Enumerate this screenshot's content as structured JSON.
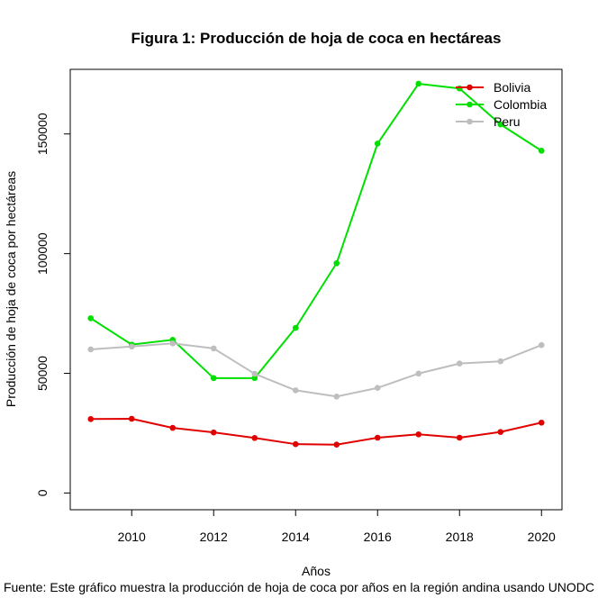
{
  "chart_data": {
    "type": "line",
    "title": "Figura 1: Producción de hoja de coca en hectáreas",
    "xlabel": "Años",
    "ylabel": "Producción de hoja de coca por hectáreas",
    "caption": "Fuente: Este gráfico muestra la producción de hoja de coca por años en la región andina usando UNODC",
    "x": [
      2009,
      2010,
      2011,
      2012,
      2013,
      2014,
      2015,
      2016,
      2017,
      2018,
      2019,
      2020
    ],
    "xlim": [
      2008.5,
      2020.5
    ],
    "ylim": [
      -7000,
      177000
    ],
    "x_ticks": [
      2010,
      2012,
      2014,
      2016,
      2018,
      2020
    ],
    "x_tick_labels": [
      "2010",
      "2012",
      "2014",
      "2016",
      "2018",
      "2020"
    ],
    "y_ticks": [
      0,
      50000,
      100000,
      150000
    ],
    "y_tick_labels": [
      "0",
      "50000",
      "100000",
      "150000"
    ],
    "legend_position": "top-right",
    "series": [
      {
        "name": "Bolivia",
        "color": "#e00000",
        "values": [
          30900,
          31000,
          27200,
          25300,
          23000,
          20400,
          20200,
          23100,
          24500,
          23100,
          25500,
          29400
        ]
      },
      {
        "name": "Colombia",
        "color": "#00e000",
        "values": [
          73000,
          62000,
          64000,
          48000,
          48000,
          69000,
          96000,
          146000,
          171000,
          169000,
          154000,
          143000
        ]
      },
      {
        "name": "Peru",
        "color": "#bebebe",
        "values": [
          60000,
          61200,
          62500,
          60400,
          49800,
          42900,
          40300,
          43900,
          49900,
          54100,
          55000,
          61800
        ]
      }
    ]
  }
}
